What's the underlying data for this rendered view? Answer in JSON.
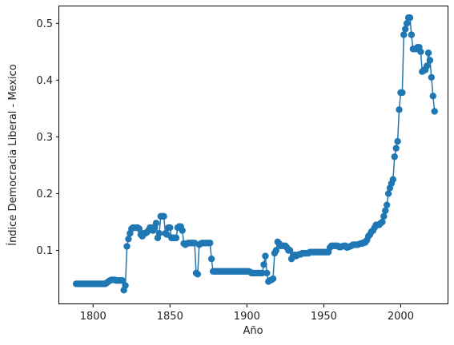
{
  "chart_data": {
    "type": "line",
    "title": "",
    "xlabel": "Año",
    "ylabel": "Índice Democracia Liberal - Mexico",
    "xlim": [
      1778,
      2031
    ],
    "ylim": [
      0.005,
      0.53
    ],
    "xticks": [
      1800,
      1850,
      1900,
      1950,
      2000
    ],
    "yticks": [
      0.1,
      0.2,
      0.3,
      0.4,
      0.5
    ],
    "grid": false,
    "legend": "none",
    "marker": "circle",
    "color": "#1f77b4",
    "series": [
      {
        "points": [
          [
            1789,
            0.041
          ],
          [
            1790,
            0.041
          ],
          [
            1791,
            0.041
          ],
          [
            1792,
            0.041
          ],
          [
            1793,
            0.041
          ],
          [
            1794,
            0.041
          ],
          [
            1795,
            0.041
          ],
          [
            1796,
            0.041
          ],
          [
            1797,
            0.041
          ],
          [
            1798,
            0.041
          ],
          [
            1799,
            0.041
          ],
          [
            1800,
            0.041
          ],
          [
            1801,
            0.041
          ],
          [
            1802,
            0.041
          ],
          [
            1803,
            0.041
          ],
          [
            1804,
            0.041
          ],
          [
            1805,
            0.041
          ],
          [
            1806,
            0.041
          ],
          [
            1807,
            0.041
          ],
          [
            1808,
            0.041
          ],
          [
            1809,
            0.043
          ],
          [
            1810,
            0.045
          ],
          [
            1811,
            0.047
          ],
          [
            1812,
            0.048
          ],
          [
            1813,
            0.048
          ],
          [
            1814,
            0.048
          ],
          [
            1815,
            0.047
          ],
          [
            1816,
            0.047
          ],
          [
            1817,
            0.047
          ],
          [
            1818,
            0.047
          ],
          [
            1819,
            0.047
          ],
          [
            1820,
            0.03
          ],
          [
            1821,
            0.038
          ],
          [
            1822,
            0.107
          ],
          [
            1823,
            0.12
          ],
          [
            1824,
            0.13
          ],
          [
            1825,
            0.138
          ],
          [
            1826,
            0.14
          ],
          [
            1827,
            0.14
          ],
          [
            1828,
            0.14
          ],
          [
            1829,
            0.14
          ],
          [
            1830,
            0.138
          ],
          [
            1831,
            0.128
          ],
          [
            1832,
            0.125
          ],
          [
            1833,
            0.13
          ],
          [
            1834,
            0.13
          ],
          [
            1835,
            0.132
          ],
          [
            1836,
            0.135
          ],
          [
            1837,
            0.14
          ],
          [
            1838,
            0.14
          ],
          [
            1839,
            0.135
          ],
          [
            1840,
            0.14
          ],
          [
            1841,
            0.148
          ],
          [
            1842,
            0.122
          ],
          [
            1843,
            0.13
          ],
          [
            1844,
            0.16
          ],
          [
            1845,
            0.16
          ],
          [
            1846,
            0.16
          ],
          [
            1847,
            0.13
          ],
          [
            1848,
            0.128
          ],
          [
            1849,
            0.14
          ],
          [
            1850,
            0.14
          ],
          [
            1851,
            0.122
          ],
          [
            1852,
            0.122
          ],
          [
            1853,
            0.122
          ],
          [
            1854,
            0.122
          ],
          [
            1855,
            0.14
          ],
          [
            1856,
            0.142
          ],
          [
            1857,
            0.142
          ],
          [
            1858,
            0.135
          ],
          [
            1859,
            0.112
          ],
          [
            1860,
            0.11
          ],
          [
            1861,
            0.112
          ],
          [
            1862,
            0.113
          ],
          [
            1863,
            0.113
          ],
          [
            1864,
            0.113
          ],
          [
            1865,
            0.113
          ],
          [
            1866,
            0.113
          ],
          [
            1867,
            0.06
          ],
          [
            1868,
            0.058
          ],
          [
            1869,
            0.11
          ],
          [
            1870,
            0.112
          ],
          [
            1871,
            0.113
          ],
          [
            1872,
            0.113
          ],
          [
            1873,
            0.113
          ],
          [
            1874,
            0.113
          ],
          [
            1875,
            0.113
          ],
          [
            1876,
            0.113
          ],
          [
            1877,
            0.085
          ],
          [
            1878,
            0.063
          ],
          [
            1879,
            0.063
          ],
          [
            1880,
            0.063
          ],
          [
            1881,
            0.063
          ],
          [
            1882,
            0.063
          ],
          [
            1883,
            0.063
          ],
          [
            1884,
            0.063
          ],
          [
            1885,
            0.063
          ],
          [
            1886,
            0.063
          ],
          [
            1887,
            0.063
          ],
          [
            1888,
            0.063
          ],
          [
            1889,
            0.063
          ],
          [
            1890,
            0.063
          ],
          [
            1891,
            0.063
          ],
          [
            1892,
            0.063
          ],
          [
            1893,
            0.063
          ],
          [
            1894,
            0.063
          ],
          [
            1895,
            0.063
          ],
          [
            1896,
            0.063
          ],
          [
            1897,
            0.063
          ],
          [
            1898,
            0.063
          ],
          [
            1899,
            0.063
          ],
          [
            1900,
            0.063
          ],
          [
            1901,
            0.063
          ],
          [
            1902,
            0.062
          ],
          [
            1903,
            0.06
          ],
          [
            1904,
            0.06
          ],
          [
            1905,
            0.06
          ],
          [
            1906,
            0.06
          ],
          [
            1907,
            0.06
          ],
          [
            1908,
            0.06
          ],
          [
            1909,
            0.06
          ],
          [
            1910,
            0.06
          ],
          [
            1911,
            0.075
          ],
          [
            1912,
            0.09
          ],
          [
            1913,
            0.06
          ],
          [
            1914,
            0.045
          ],
          [
            1915,
            0.047
          ],
          [
            1916,
            0.048
          ],
          [
            1917,
            0.05
          ],
          [
            1918,
            0.095
          ],
          [
            1919,
            0.1
          ],
          [
            1920,
            0.115
          ],
          [
            1921,
            0.112
          ],
          [
            1922,
            0.108
          ],
          [
            1923,
            0.108
          ],
          [
            1924,
            0.108
          ],
          [
            1925,
            0.108
          ],
          [
            1926,
            0.105
          ],
          [
            1927,
            0.1
          ],
          [
            1928,
            0.1
          ],
          [
            1929,
            0.085
          ],
          [
            1930,
            0.09
          ],
          [
            1931,
            0.092
          ],
          [
            1932,
            0.09
          ],
          [
            1933,
            0.092
          ],
          [
            1934,
            0.093
          ],
          [
            1935,
            0.093
          ],
          [
            1936,
            0.095
          ],
          [
            1937,
            0.095
          ],
          [
            1938,
            0.095
          ],
          [
            1939,
            0.095
          ],
          [
            1940,
            0.095
          ],
          [
            1941,
            0.097
          ],
          [
            1942,
            0.097
          ],
          [
            1943,
            0.097
          ],
          [
            1944,
            0.097
          ],
          [
            1945,
            0.097
          ],
          [
            1946,
            0.097
          ],
          [
            1947,
            0.097
          ],
          [
            1948,
            0.097
          ],
          [
            1949,
            0.097
          ],
          [
            1950,
            0.097
          ],
          [
            1951,
            0.097
          ],
          [
            1952,
            0.097
          ],
          [
            1953,
            0.097
          ],
          [
            1954,
            0.105
          ],
          [
            1955,
            0.108
          ],
          [
            1956,
            0.108
          ],
          [
            1957,
            0.108
          ],
          [
            1958,
            0.108
          ],
          [
            1959,
            0.108
          ],
          [
            1960,
            0.106
          ],
          [
            1961,
            0.106
          ],
          [
            1962,
            0.107
          ],
          [
            1963,
            0.108
          ],
          [
            1964,
            0.108
          ],
          [
            1965,
            0.105
          ],
          [
            1966,
            0.106
          ],
          [
            1967,
            0.107
          ],
          [
            1968,
            0.108
          ],
          [
            1969,
            0.11
          ],
          [
            1970,
            0.11
          ],
          [
            1971,
            0.11
          ],
          [
            1972,
            0.11
          ],
          [
            1973,
            0.111
          ],
          [
            1974,
            0.112
          ],
          [
            1975,
            0.112
          ],
          [
            1976,
            0.114
          ],
          [
            1977,
            0.114
          ],
          [
            1978,
            0.118
          ],
          [
            1979,
            0.125
          ],
          [
            1980,
            0.128
          ],
          [
            1981,
            0.133
          ],
          [
            1982,
            0.135
          ],
          [
            1983,
            0.14
          ],
          [
            1984,
            0.145
          ],
          [
            1985,
            0.145
          ],
          [
            1986,
            0.145
          ],
          [
            1987,
            0.148
          ],
          [
            1988,
            0.15
          ],
          [
            1989,
            0.16
          ],
          [
            1990,
            0.17
          ],
          [
            1991,
            0.18
          ],
          [
            1992,
            0.2
          ],
          [
            1993,
            0.21
          ],
          [
            1994,
            0.218
          ],
          [
            1995,
            0.225
          ],
          [
            1996,
            0.265
          ],
          [
            1997,
            0.28
          ],
          [
            1998,
            0.292
          ],
          [
            1999,
            0.348
          ],
          [
            2000,
            0.378
          ],
          [
            2001,
            0.378
          ],
          [
            2002,
            0.48
          ],
          [
            2003,
            0.49
          ],
          [
            2004,
            0.5
          ],
          [
            2005,
            0.51
          ],
          [
            2006,
            0.51
          ],
          [
            2007,
            0.48
          ],
          [
            2008,
            0.455
          ],
          [
            2009,
            0.455
          ],
          [
            2010,
            0.455
          ],
          [
            2011,
            0.458
          ],
          [
            2012,
            0.458
          ],
          [
            2013,
            0.45
          ],
          [
            2014,
            0.415
          ],
          [
            2015,
            0.418
          ],
          [
            2016,
            0.418
          ],
          [
            2017,
            0.425
          ],
          [
            2018,
            0.448
          ],
          [
            2019,
            0.435
          ],
          [
            2020,
            0.405
          ],
          [
            2021,
            0.372
          ],
          [
            2022,
            0.345
          ]
        ]
      }
    ]
  }
}
